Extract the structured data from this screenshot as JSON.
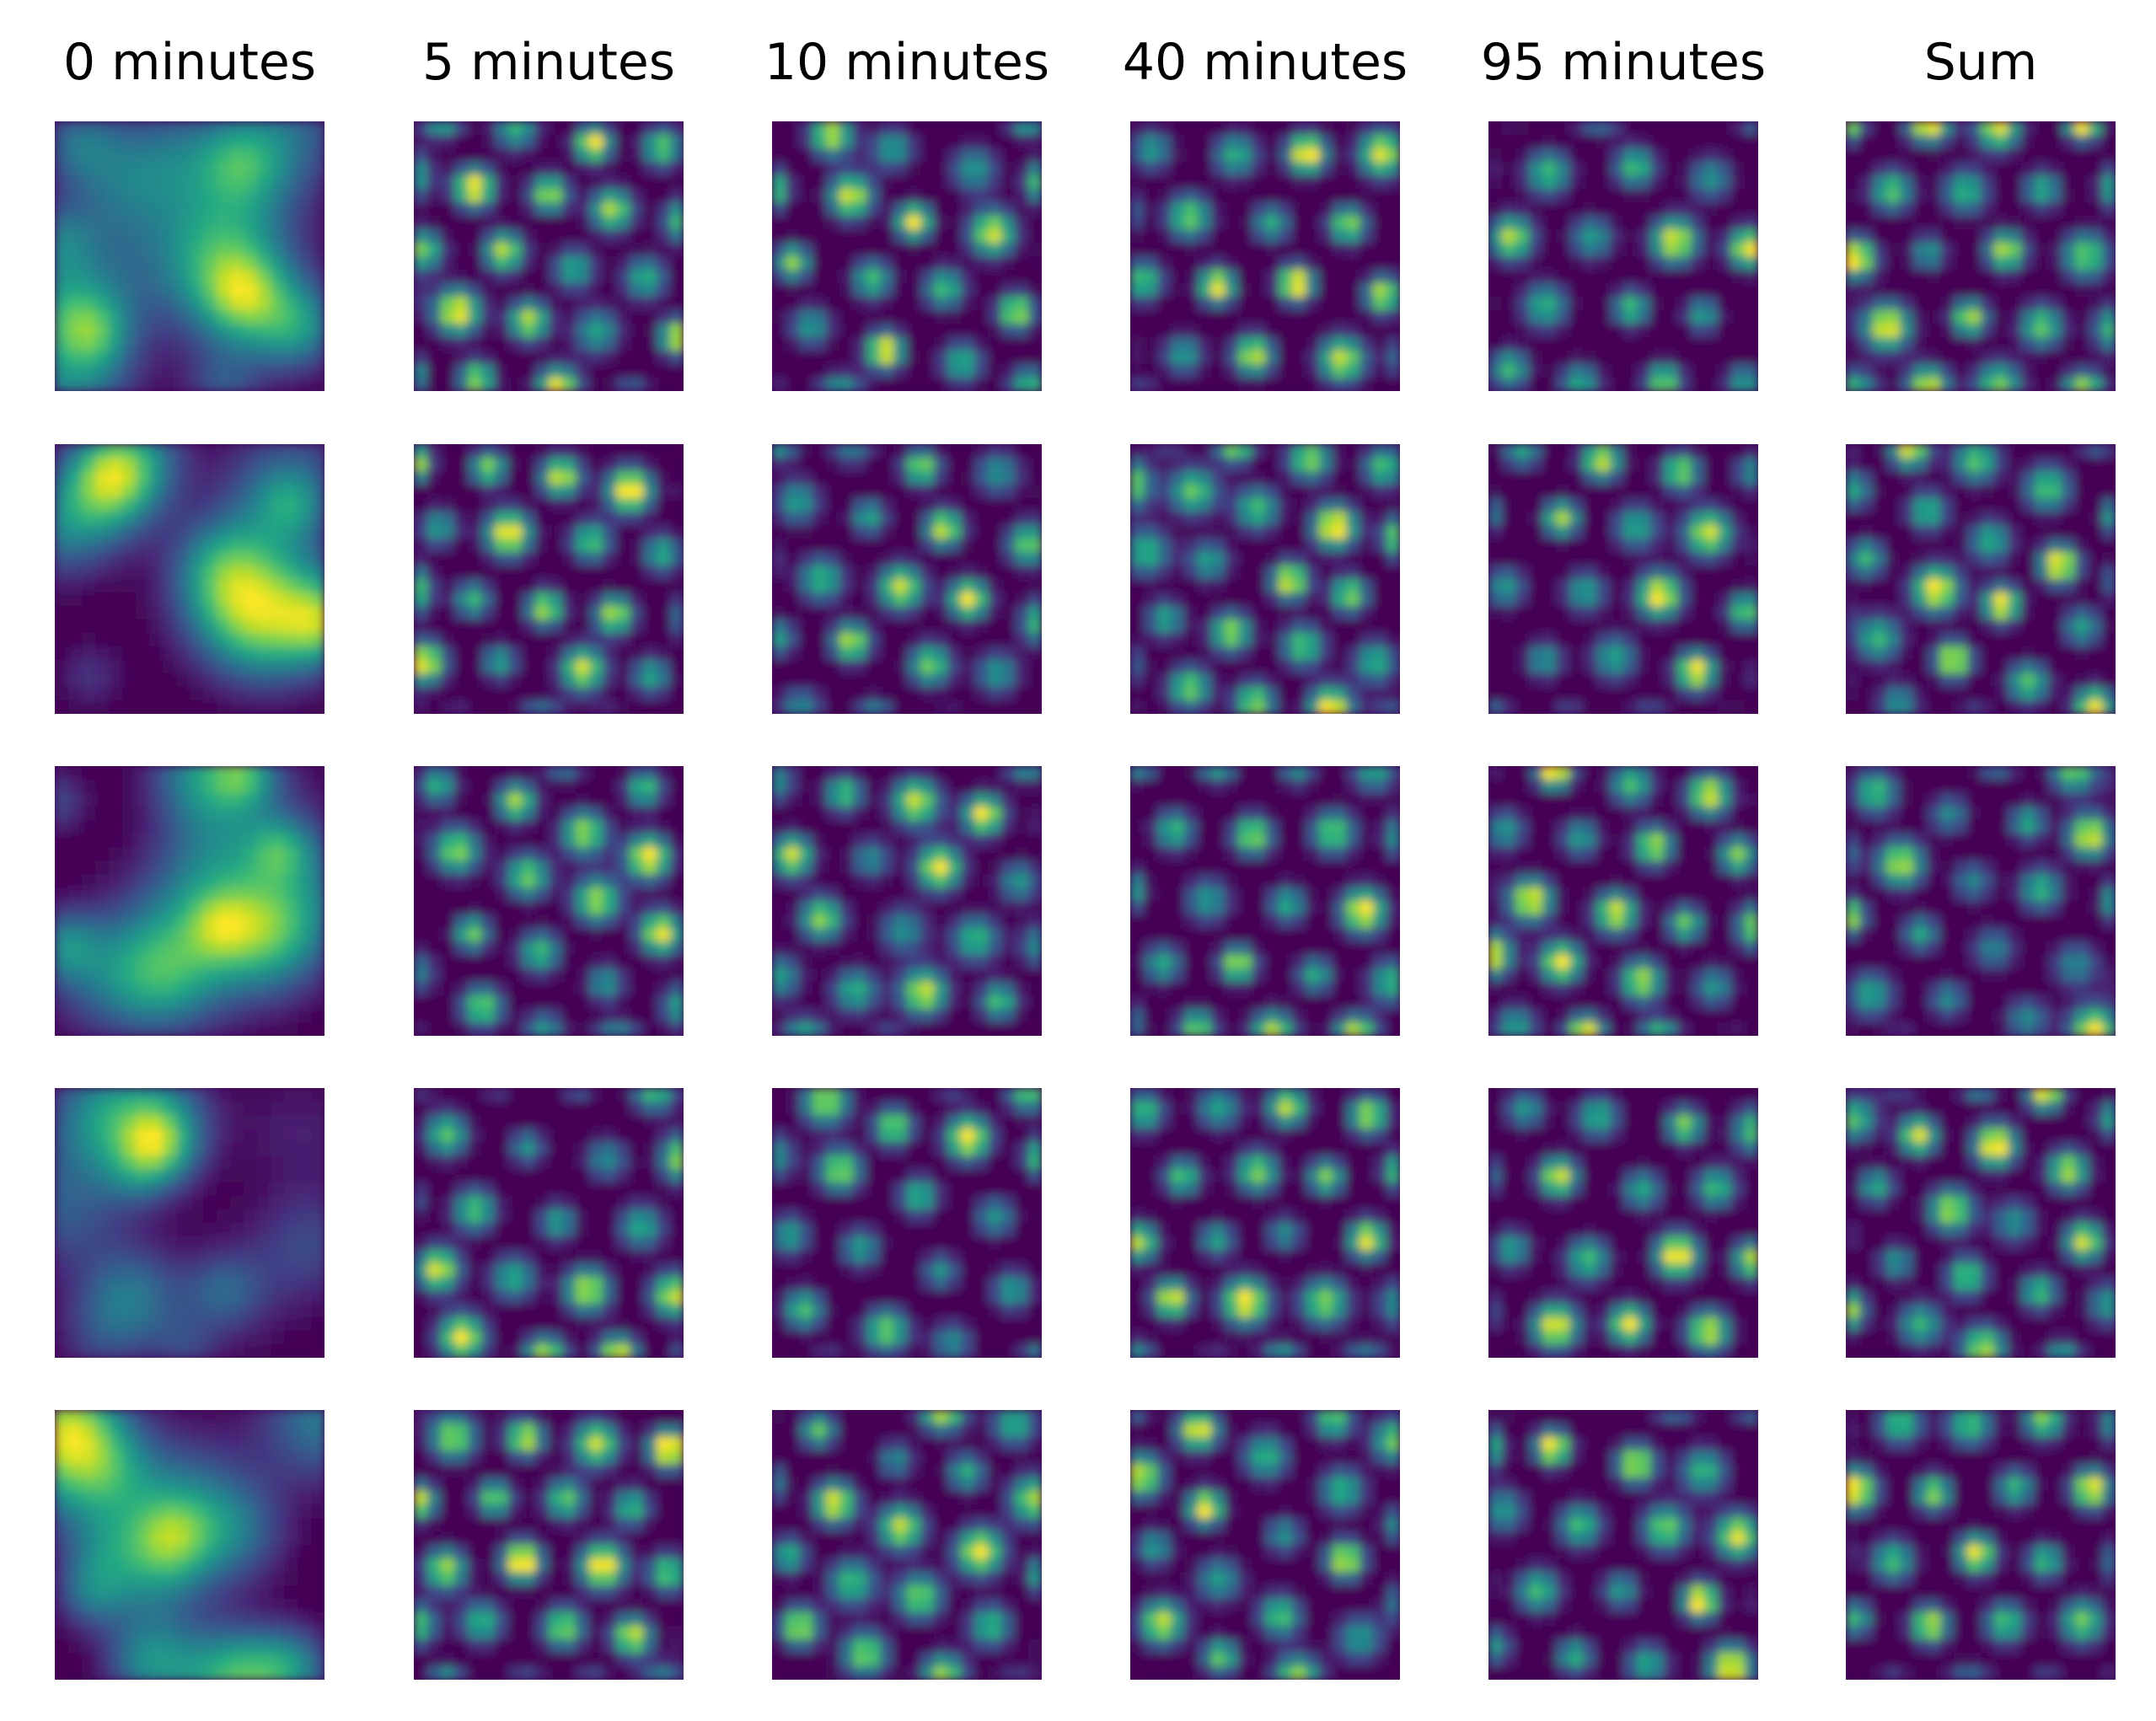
{
  "chart_data": {
    "type": "heatmap",
    "colormap": "viridis",
    "colors": {
      "low": "#440154",
      "mid": "#21918c",
      "high": "#fde725"
    },
    "axes_visible": false,
    "columns": [
      "0 minutes",
      "5 minutes",
      "10 minutes",
      "40 minutes",
      "95 minutes",
      "Sum"
    ],
    "rows": 5,
    "grid_size": [
      20,
      20
    ],
    "panels": [
      {
        "row": 0,
        "col": 0,
        "pattern": "diffuse",
        "seed": 11
      },
      {
        "row": 0,
        "col": 1,
        "pattern": "hexagonal",
        "seed": 12,
        "spacing": 5.4,
        "angle": 8
      },
      {
        "row": 0,
        "col": 2,
        "pattern": "hexagonal",
        "seed": 13,
        "spacing": 5.6,
        "angle": 14
      },
      {
        "row": 0,
        "col": 3,
        "pattern": "hexagonal",
        "seed": 14,
        "spacing": 5.8,
        "angle": 3
      },
      {
        "row": 0,
        "col": 4,
        "pattern": "hexagonal",
        "seed": 15,
        "spacing": 5.9,
        "angle": 2
      },
      {
        "row": 0,
        "col": 5,
        "pattern": "hexagonal",
        "seed": 16,
        "spacing": 5.7,
        "angle": 0
      },
      {
        "row": 1,
        "col": 0,
        "pattern": "diffuse",
        "seed": 21
      },
      {
        "row": 1,
        "col": 1,
        "pattern": "hexagonal",
        "seed": 22,
        "spacing": 5.5,
        "angle": 5
      },
      {
        "row": 1,
        "col": 2,
        "pattern": "hexagonal",
        "seed": 23,
        "spacing": 5.6,
        "angle": 10
      },
      {
        "row": 1,
        "col": 3,
        "pattern": "hexagonal",
        "seed": 24,
        "spacing": 5.3,
        "angle": 12
      },
      {
        "row": 1,
        "col": 4,
        "pattern": "hexagonal",
        "seed": 25,
        "spacing": 5.7,
        "angle": 6
      },
      {
        "row": 1,
        "col": 5,
        "pattern": "hexagonal",
        "seed": 26,
        "spacing": 5.4,
        "angle": 18
      },
      {
        "row": 2,
        "col": 0,
        "pattern": "diffuse",
        "seed": 31
      },
      {
        "row": 2,
        "col": 1,
        "pattern": "hexagonal",
        "seed": 32,
        "spacing": 5.6,
        "angle": 20
      },
      {
        "row": 2,
        "col": 2,
        "pattern": "hexagonal",
        "seed": 33,
        "spacing": 5.5,
        "angle": 7
      },
      {
        "row": 2,
        "col": 3,
        "pattern": "hexagonal",
        "seed": 34,
        "spacing": 5.8,
        "angle": 4
      },
      {
        "row": 2,
        "col": 4,
        "pattern": "hexagonal",
        "seed": 35,
        "spacing": 5.6,
        "angle": 9
      },
      {
        "row": 2,
        "col": 5,
        "pattern": "hexagonal",
        "seed": 36,
        "spacing": 5.5,
        "angle": 11
      },
      {
        "row": 3,
        "col": 0,
        "pattern": "diffuse",
        "seed": 41
      },
      {
        "row": 3,
        "col": 1,
        "pattern": "hexagonal",
        "seed": 42,
        "spacing": 5.8,
        "angle": 6
      },
      {
        "row": 3,
        "col": 2,
        "pattern": "hexagonal",
        "seed": 43,
        "spacing": 5.7,
        "angle": 15
      },
      {
        "row": 3,
        "col": 3,
        "pattern": "hexagonal",
        "seed": 44,
        "spacing": 5.6,
        "angle": 1
      },
      {
        "row": 3,
        "col": 4,
        "pattern": "hexagonal",
        "seed": 45,
        "spacing": 5.9,
        "angle": 3
      },
      {
        "row": 3,
        "col": 5,
        "pattern": "hexagonal",
        "seed": 46,
        "spacing": 5.5,
        "angle": 13
      },
      {
        "row": 4,
        "col": 0,
        "pattern": "diffuse",
        "seed": 51
      },
      {
        "row": 4,
        "col": 1,
        "pattern": "hexagonal",
        "seed": 52,
        "spacing": 5.4,
        "angle": 2
      },
      {
        "row": 4,
        "col": 2,
        "pattern": "hexagonal",
        "seed": 53,
        "spacing": 5.5,
        "angle": 17
      },
      {
        "row": 4,
        "col": 3,
        "pattern": "hexagonal",
        "seed": 54,
        "spacing": 5.6,
        "angle": 24
      },
      {
        "row": 4,
        "col": 4,
        "pattern": "hexagonal",
        "seed": 55,
        "spacing": 5.8,
        "angle": 5
      },
      {
        "row": 4,
        "col": 5,
        "pattern": "hexagonal",
        "seed": 56,
        "spacing": 5.6,
        "angle": 0
      }
    ]
  }
}
